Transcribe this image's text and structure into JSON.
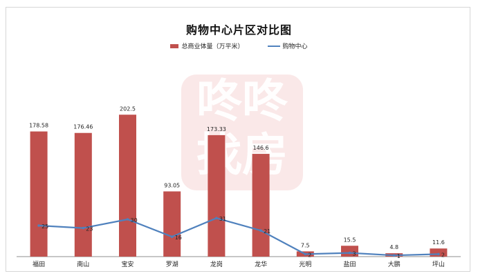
{
  "chart_data": {
    "type": "bar",
    "title": "购物中心片区对比图",
    "categories": [
      "福田",
      "南山",
      "宝安",
      "罗湖",
      "龙岗",
      "龙华",
      "光明",
      "盐田",
      "大鹏",
      "坪山"
    ],
    "series": [
      {
        "name": "总商业体量（万平米）",
        "type": "bar",
        "color": "#c0504d",
        "values": [
          178.58,
          176.46,
          202.5,
          93.05,
          173.33,
          146.6,
          7.5,
          15.5,
          4.8,
          11.6
        ],
        "labels": [
          "178.58",
          "176.46",
          "202.5",
          "93.05",
          "173.33",
          "146.6",
          "7.5",
          "15.5",
          "4.8",
          "11.6"
        ]
      },
      {
        "name": "购物中心",
        "type": "line",
        "color": "#4f81bd",
        "values": [
          25,
          23,
          30,
          16,
          31,
          21,
          2,
          3,
          1,
          2
        ]
      }
    ],
    "ylim": [
      0,
      250
    ],
    "grid": false,
    "legend_position": "top"
  },
  "watermark": {
    "line1": "咚咚",
    "line2": "找房"
  }
}
